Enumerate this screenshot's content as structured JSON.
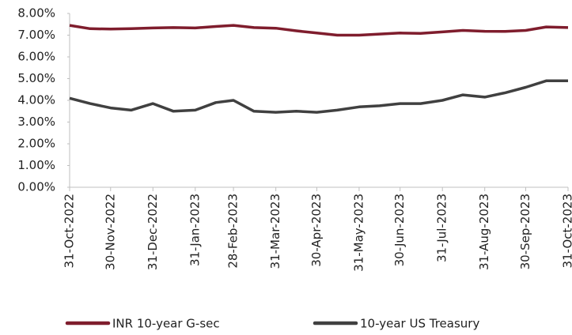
{
  "chart_data": {
    "type": "line",
    "x": [
      "31-Oct-2022",
      "15-Nov-2022",
      "30-Nov-2022",
      "15-Dec-2022",
      "31-Dec-2022",
      "15-Jan-2023",
      "31-Jan-2023",
      "15-Feb-2023",
      "28-Feb-2023",
      "15-Mar-2023",
      "31-Mar-2023",
      "15-Apr-2023",
      "30-Apr-2023",
      "15-May-2023",
      "31-May-2023",
      "15-Jun-2023",
      "30-Jun-2023",
      "15-Jul-2023",
      "31-Jul-2023",
      "15-Aug-2023",
      "31-Aug-2023",
      "15-Sep-2023",
      "30-Sep-2023",
      "15-Oct-2023",
      "31-Oct-2023"
    ],
    "series": [
      {
        "name": "INR 10-year G-sec",
        "color": "#7f1d2d",
        "values": [
          7.45,
          7.3,
          7.28,
          7.3,
          7.33,
          7.35,
          7.33,
          7.4,
          7.45,
          7.35,
          7.32,
          7.2,
          7.1,
          7.0,
          7.0,
          7.05,
          7.1,
          7.08,
          7.15,
          7.22,
          7.18,
          7.17,
          7.22,
          7.38,
          7.35
        ]
      },
      {
        "name": "10-year US Treasury",
        "color": "#404040",
        "values": [
          4.1,
          3.85,
          3.65,
          3.55,
          3.85,
          3.5,
          3.55,
          3.9,
          4.0,
          3.5,
          3.45,
          3.5,
          3.45,
          3.55,
          3.7,
          3.75,
          3.85,
          3.85,
          4.0,
          4.25,
          4.15,
          4.35,
          4.6,
          4.9,
          4.9
        ]
      }
    ],
    "xlim": [
      "31-Oct-2022",
      "31-Oct-2023"
    ],
    "xticks": [
      "31-Oct-2022",
      "30-Nov-2022",
      "31-Dec-2022",
      "31-Jan-2023",
      "28-Feb-2023",
      "31-Mar-2023",
      "30-Apr-2023",
      "31-May-2023",
      "30-Jun-2023",
      "31-Jul-2023",
      "31-Aug-2023",
      "30-Sep-2023",
      "31-Oct-2023"
    ],
    "ylim": [
      0,
      8
    ],
    "yticks": [
      {
        "value": 0,
        "label": "0.00%"
      },
      {
        "value": 1,
        "label": "1.00%"
      },
      {
        "value": 2,
        "label": "2.00%"
      },
      {
        "value": 3,
        "label": "3.00%"
      },
      {
        "value": 4,
        "label": "4.00%"
      },
      {
        "value": 5,
        "label": "5.00%"
      },
      {
        "value": 6,
        "label": "6.00%"
      },
      {
        "value": 7,
        "label": "7.00%"
      },
      {
        "value": 8,
        "label": "8.00%"
      }
    ],
    "grid": false
  }
}
